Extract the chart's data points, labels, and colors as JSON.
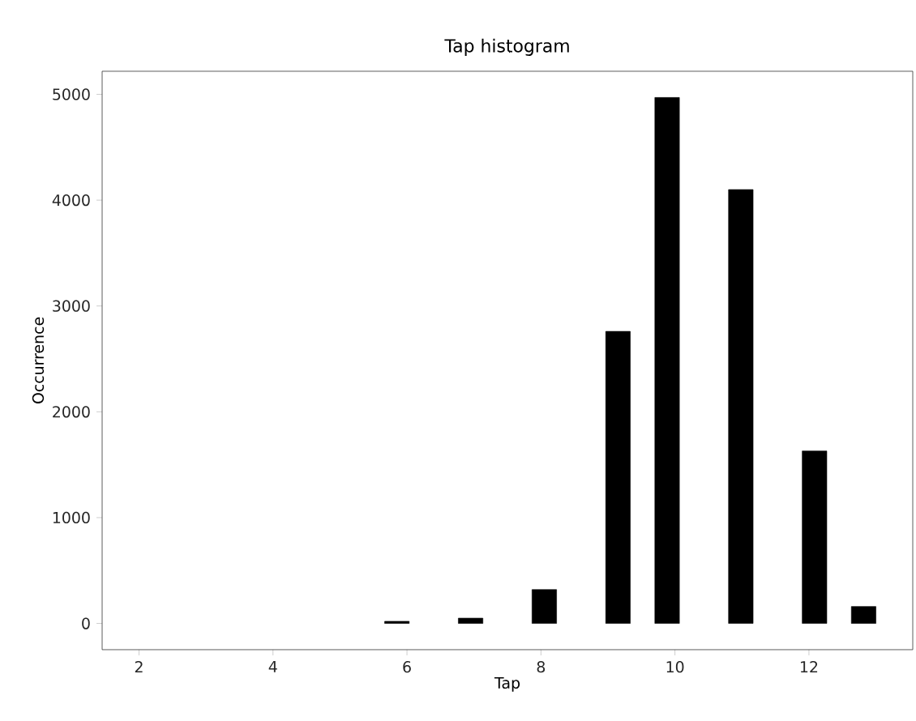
{
  "chart_data": {
    "type": "histogram",
    "title": "Tap histogram",
    "xlabel": "Tap",
    "ylabel": "Occurrence",
    "bins": [
      2.0,
      2.3667,
      2.7333,
      3.1,
      3.4667,
      3.8333,
      4.2,
      4.5667,
      4.9333,
      5.3,
      5.6667,
      6.0333,
      6.4,
      6.7667,
      7.1333,
      7.5,
      7.8667,
      8.2333,
      8.6,
      8.9667,
      9.3333,
      9.7,
      10.0667,
      10.4333,
      10.8,
      11.1667,
      11.5333,
      11.9,
      12.2667,
      12.6333,
      13.0
    ],
    "values": [
      0,
      0,
      0,
      0,
      0,
      0,
      0,
      0,
      0,
      0,
      20,
      0,
      0,
      50,
      0,
      0,
      320,
      0,
      0,
      2760,
      0,
      4970,
      0,
      0,
      4100,
      0,
      0,
      1630,
      0,
      160
    ],
    "color": "#000000",
    "xlim": [
      1.45,
      13.55
    ],
    "ylim": [
      -248,
      5218
    ],
    "xticks": [
      2,
      4,
      6,
      8,
      10,
      12
    ],
    "yticks": [
      0,
      1000,
      2000,
      3000,
      4000,
      5000
    ]
  }
}
